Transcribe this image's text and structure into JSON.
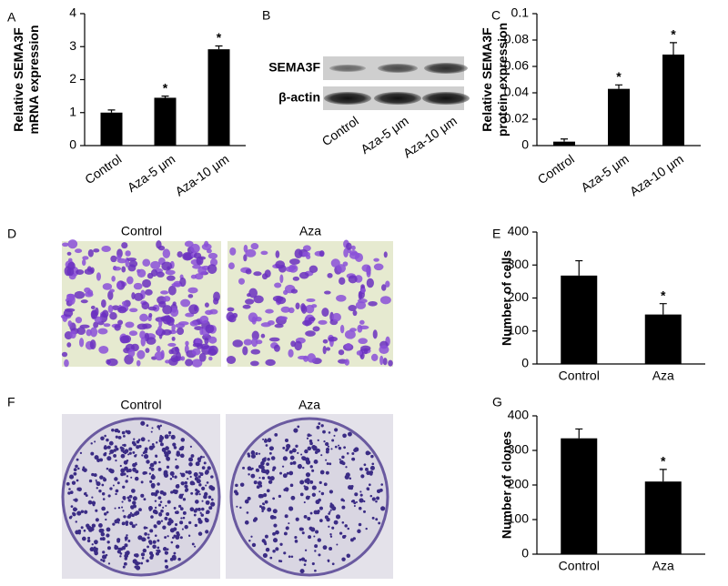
{
  "panel_labels": [
    "A",
    "B",
    "C",
    "D",
    "E",
    "F",
    "G"
  ],
  "chart_data": [
    {
      "type": "bar",
      "ylabel": [
        "Relative SEMA3F",
        "mRNA expression"
      ],
      "categories": [
        "Control",
        "Aza-5 μm",
        "Aza-10 μm"
      ],
      "values": [
        1.0,
        1.45,
        2.92
      ],
      "errors": [
        0.08,
        0.05,
        0.1
      ],
      "color": "#000000",
      "ylim": [
        0,
        4
      ],
      "yticks": [
        0,
        1,
        2,
        3,
        4
      ],
      "significance_marker": "*",
      "significant": [
        false,
        true,
        true
      ]
    },
    {
      "type": "bar",
      "ylabel": [
        "Relative SEMA3F",
        "protein expression"
      ],
      "categories": [
        "Control",
        "Aza-5 μm",
        "Aza-10 μm"
      ],
      "values": [
        0.003,
        0.043,
        0.069
      ],
      "errors": [
        0.002,
        0.003,
        0.009
      ],
      "color": "#000000",
      "ylim": [
        0,
        0.1
      ],
      "yticks": [
        0,
        0.02,
        0.04,
        0.06,
        0.08,
        0.1
      ],
      "significance_marker": "*",
      "significant": [
        false,
        true,
        true
      ]
    },
    {
      "type": "bar",
      "ylabel": [
        "Number of cells"
      ],
      "categories": [
        "Control",
        "Aza"
      ],
      "values": [
        268,
        150
      ],
      "errors": [
        45,
        33
      ],
      "color": "#000000",
      "ylim": [
        0,
        400
      ],
      "yticks": [
        0,
        100,
        200,
        300,
        400
      ],
      "significance_marker": "*",
      "significant": [
        false,
        true
      ]
    },
    {
      "type": "bar",
      "ylabel": [
        "Number of clones"
      ],
      "categories": [
        "Control",
        "Aza"
      ],
      "values": [
        335,
        210
      ],
      "errors": [
        27,
        35
      ],
      "color": "#000000",
      "ylim": [
        0,
        400
      ],
      "yticks": [
        0,
        100,
        200,
        300,
        400
      ],
      "significance_marker": "*",
      "significant": [
        false,
        true
      ]
    }
  ],
  "blot": {
    "rows": [
      "SEMA3F",
      "β-actin"
    ],
    "lanes": [
      "Control",
      "Aza-5 μm",
      "Aza-10 μm"
    ]
  },
  "micrographs": {
    "titles": [
      "Control",
      "Aza"
    ]
  },
  "colony_plates": {
    "titles": [
      "Control",
      "Aza"
    ]
  }
}
